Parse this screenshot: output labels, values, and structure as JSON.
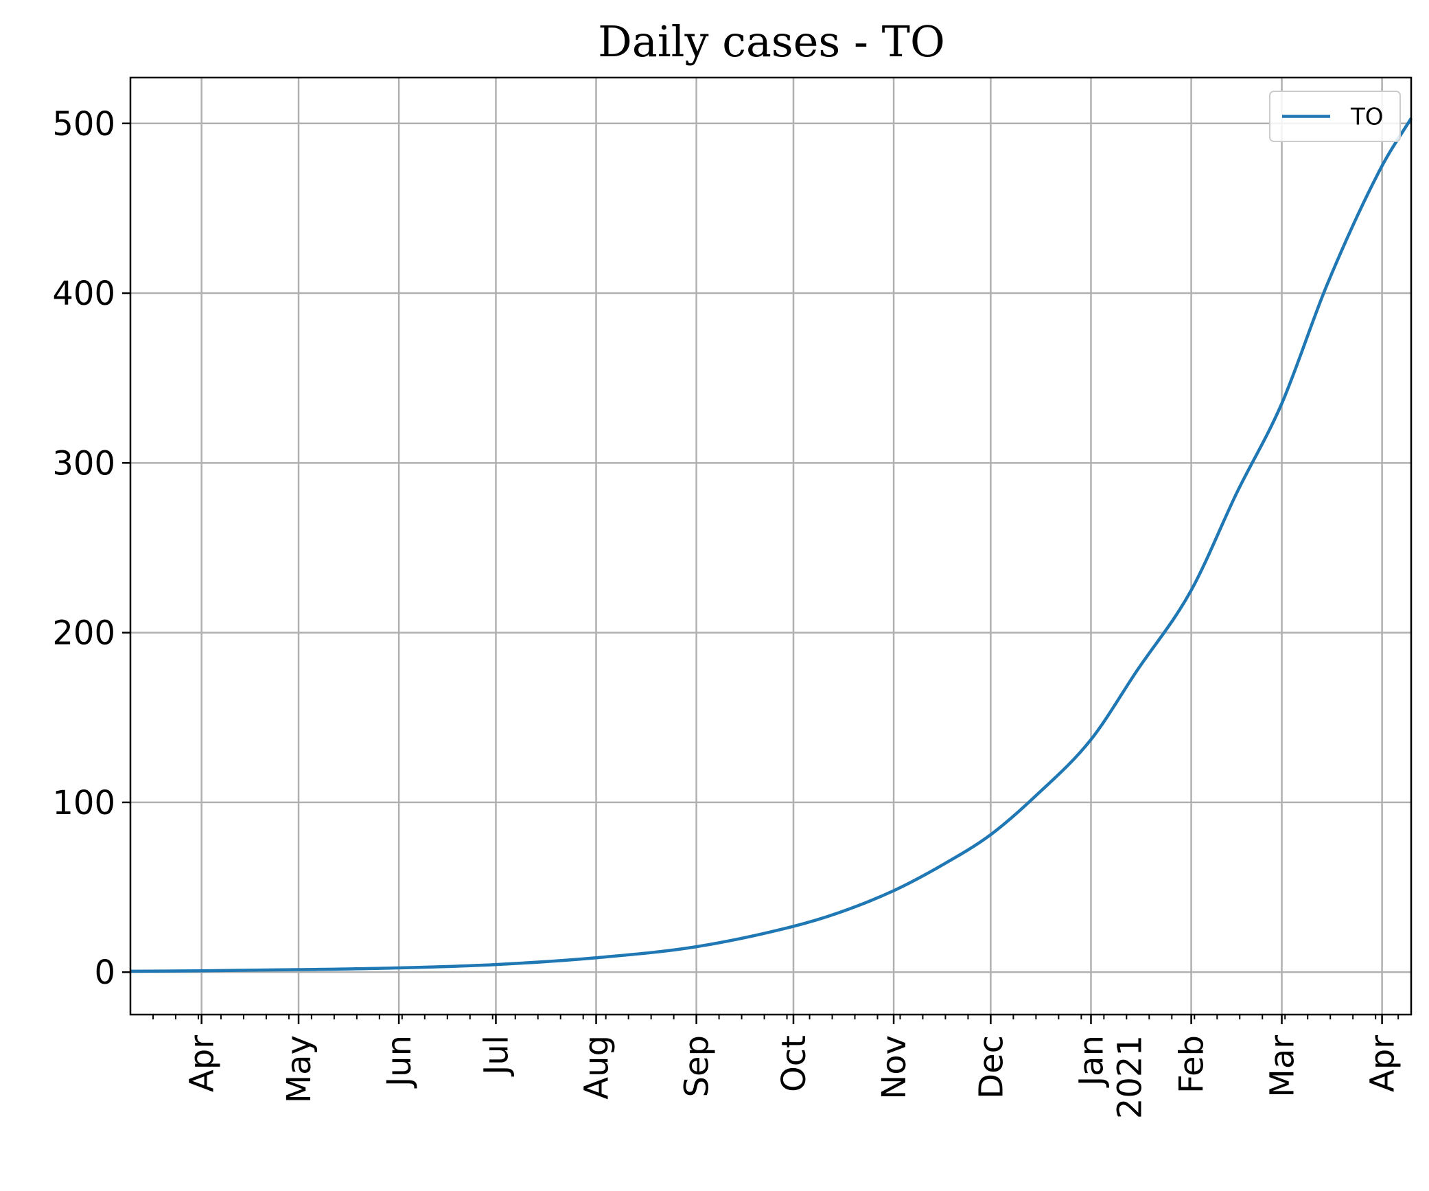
{
  "chart_data": {
    "type": "line",
    "title": "Daily cases - TO",
    "xlabel": "",
    "ylabel": "",
    "x_axis": {
      "type": "date",
      "range": [
        "2020-03-10",
        "2021-04-10"
      ],
      "ticks": [
        {
          "date": "2020-04-01",
          "label": "Apr"
        },
        {
          "date": "2020-05-01",
          "label": "May"
        },
        {
          "date": "2020-06-01",
          "label": "Jun"
        },
        {
          "date": "2020-07-01",
          "label": "Jul"
        },
        {
          "date": "2020-08-01",
          "label": "Aug"
        },
        {
          "date": "2020-09-01",
          "label": "Sep"
        },
        {
          "date": "2020-10-01",
          "label": "Oct"
        },
        {
          "date": "2020-11-01",
          "label": "Nov"
        },
        {
          "date": "2020-12-01",
          "label": "Dec"
        },
        {
          "date": "2021-01-01",
          "label": "Jan\n2021"
        },
        {
          "date": "2021-02-01",
          "label": "Feb"
        },
        {
          "date": "2021-03-01",
          "label": "Mar"
        },
        {
          "date": "2021-04-01",
          "label": "Apr"
        }
      ],
      "minor_ticks": "weekly"
    },
    "y_axis": {
      "range": [
        -25,
        527
      ],
      "ticks": [
        0,
        100,
        200,
        300,
        400,
        500
      ]
    },
    "grid": true,
    "legend": {
      "placement": "top-right",
      "entries": [
        "TO"
      ]
    },
    "series": [
      {
        "name": "TO",
        "color": "#1f77b4",
        "points": [
          {
            "x": "2020-03-10",
            "y": 0.5
          },
          {
            "x": "2020-04-01",
            "y": 0.8
          },
          {
            "x": "2020-05-01",
            "y": 1.5
          },
          {
            "x": "2020-06-01",
            "y": 2.5
          },
          {
            "x": "2020-07-01",
            "y": 4.5
          },
          {
            "x": "2020-08-01",
            "y": 8.5
          },
          {
            "x": "2020-09-01",
            "y": 15
          },
          {
            "x": "2020-10-01",
            "y": 27
          },
          {
            "x": "2020-10-15",
            "y": 35
          },
          {
            "x": "2020-11-01",
            "y": 48
          },
          {
            "x": "2020-11-15",
            "y": 62
          },
          {
            "x": "2020-12-01",
            "y": 81
          },
          {
            "x": "2020-12-15",
            "y": 104
          },
          {
            "x": "2021-01-01",
            "y": 137
          },
          {
            "x": "2021-01-15",
            "y": 177
          },
          {
            "x": "2021-02-01",
            "y": 225
          },
          {
            "x": "2021-02-15",
            "y": 282
          },
          {
            "x": "2021-03-01",
            "y": 335
          },
          {
            "x": "2021-03-15",
            "y": 405
          },
          {
            "x": "2021-04-01",
            "y": 475
          },
          {
            "x": "2021-04-10",
            "y": 503
          }
        ]
      }
    ]
  }
}
